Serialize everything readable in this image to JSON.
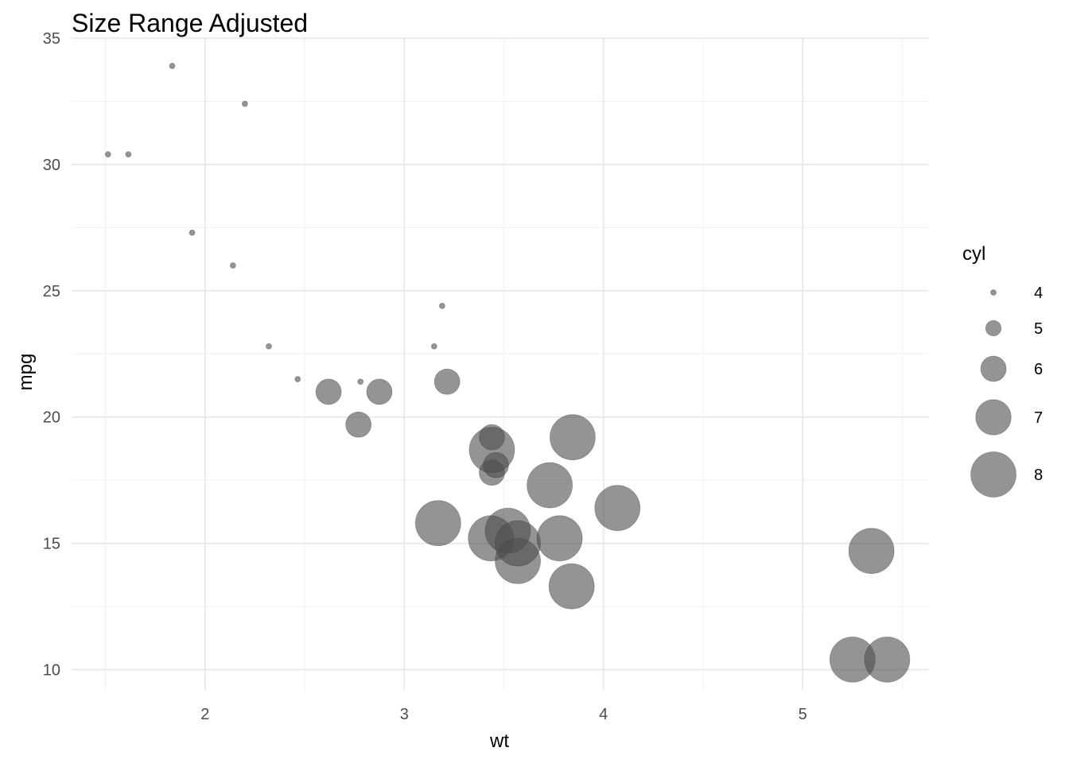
{
  "chart_data": {
    "type": "scatter",
    "title": "Size Range Adjusted",
    "xlabel": "wt",
    "ylabel": "mpg",
    "xlim": [
      1.33,
      5.63
    ],
    "ylim": [
      9.2,
      35.0
    ],
    "x_ticks": [
      2,
      3,
      4,
      5
    ],
    "y_ticks": [
      10,
      15,
      20,
      25,
      30,
      35
    ],
    "grid": true,
    "point_color": "#4d4d4d",
    "point_opacity": 0.6,
    "size_legend": {
      "title": "cyl",
      "position": "right",
      "values": [
        4,
        5,
        6,
        7,
        8
      ]
    },
    "points": [
      {
        "x": 1.513,
        "y": 30.4,
        "size": 4
      },
      {
        "x": 1.615,
        "y": 30.4,
        "size": 4
      },
      {
        "x": 1.835,
        "y": 33.9,
        "size": 4
      },
      {
        "x": 1.935,
        "y": 27.3,
        "size": 4
      },
      {
        "x": 2.14,
        "y": 26.0,
        "size": 4
      },
      {
        "x": 2.2,
        "y": 32.4,
        "size": 4
      },
      {
        "x": 2.32,
        "y": 22.8,
        "size": 4
      },
      {
        "x": 2.465,
        "y": 21.5,
        "size": 4
      },
      {
        "x": 2.78,
        "y": 21.4,
        "size": 4
      },
      {
        "x": 3.15,
        "y": 22.8,
        "size": 4
      },
      {
        "x": 3.19,
        "y": 24.4,
        "size": 4
      },
      {
        "x": 2.62,
        "y": 21.0,
        "size": 6
      },
      {
        "x": 2.77,
        "y": 19.7,
        "size": 6
      },
      {
        "x": 2.875,
        "y": 21.0,
        "size": 6
      },
      {
        "x": 3.215,
        "y": 21.4,
        "size": 6
      },
      {
        "x": 3.44,
        "y": 19.2,
        "size": 6
      },
      {
        "x": 3.44,
        "y": 17.8,
        "size": 6
      },
      {
        "x": 3.46,
        "y": 18.1,
        "size": 6
      },
      {
        "x": 3.17,
        "y": 15.8,
        "size": 8
      },
      {
        "x": 3.435,
        "y": 15.2,
        "size": 8
      },
      {
        "x": 3.44,
        "y": 18.7,
        "size": 8
      },
      {
        "x": 3.52,
        "y": 15.5,
        "size": 8
      },
      {
        "x": 3.57,
        "y": 14.3,
        "size": 8
      },
      {
        "x": 3.57,
        "y": 15.0,
        "size": 8
      },
      {
        "x": 3.73,
        "y": 17.3,
        "size": 8
      },
      {
        "x": 3.78,
        "y": 15.2,
        "size": 8
      },
      {
        "x": 3.84,
        "y": 13.3,
        "size": 8
      },
      {
        "x": 3.845,
        "y": 19.2,
        "size": 8
      },
      {
        "x": 4.07,
        "y": 16.4,
        "size": 8
      },
      {
        "x": 5.25,
        "y": 10.4,
        "size": 8
      },
      {
        "x": 5.345,
        "y": 14.7,
        "size": 8
      },
      {
        "x": 5.424,
        "y": 10.4,
        "size": 8
      }
    ]
  }
}
